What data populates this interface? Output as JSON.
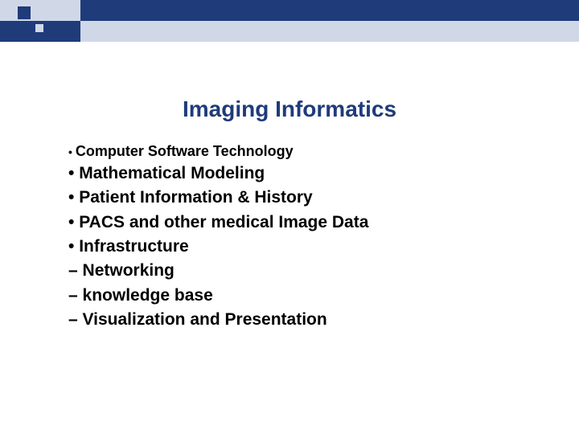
{
  "slide": {
    "title": "Imaging Informatics",
    "title_color": "#1f3b7a",
    "title_fontsize": 28,
    "background_color": "#ffffff",
    "header": {
      "dark_color": "#1f3b7a",
      "light_color": "#d0d8e8",
      "height": 52
    },
    "items": [
      {
        "marker": "•",
        "text": "Computer Software Technology",
        "small_marker": true
      },
      {
        "marker": "•",
        "text": "Mathematical Modeling",
        "small_marker": false
      },
      {
        "marker": "•",
        "text": "Patient Information & History",
        "small_marker": false
      },
      {
        "marker": "•",
        "text": "PACS and other medical Image Data",
        "small_marker": false
      },
      {
        "marker": "•",
        "text": "Infrastructure",
        "small_marker": false
      },
      {
        "marker": "–",
        "text": "Networking",
        "small_marker": false
      },
      {
        "marker": "–",
        "text": "knowledge base",
        "small_marker": false
      },
      {
        "marker": "–",
        "text": "Visualization and Presentation",
        "small_marker": false
      }
    ],
    "item_fontsize": 21,
    "item_color": "#000000",
    "item_fontweight": "bold"
  }
}
